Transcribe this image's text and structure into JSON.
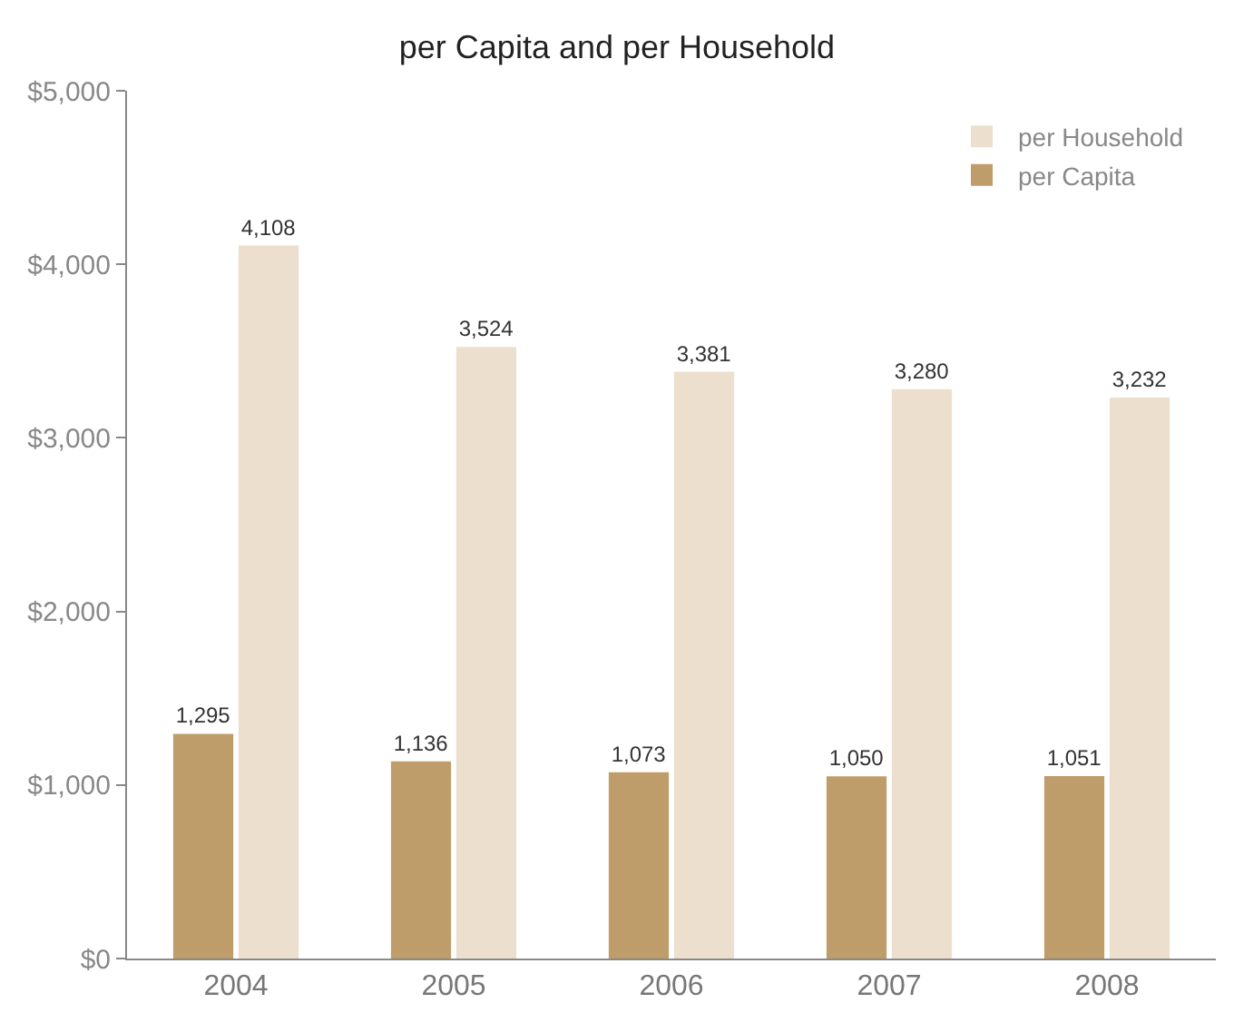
{
  "chart_data": {
    "type": "bar",
    "title": "per Capita and per Household",
    "categories": [
      "2004",
      "2005",
      "2006",
      "2007",
      "2008"
    ],
    "series": [
      {
        "name": "per Capita",
        "color": "#bf9d6a",
        "values": [
          1295,
          1136,
          1073,
          1050,
          1051
        ],
        "value_labels": [
          "1,295",
          "1,136",
          "1,073",
          "1,050",
          "1,051"
        ]
      },
      {
        "name": "per Household",
        "color": "#ecdfcd",
        "values": [
          4108,
          3524,
          3381,
          3280,
          3232
        ],
        "value_labels": [
          "4,108",
          "3,524",
          "3,381",
          "3,280",
          "3,232"
        ]
      }
    ],
    "ylim": [
      0,
      5000
    ],
    "yticks": [
      {
        "value": 0,
        "label": "$0"
      },
      {
        "value": 1000,
        "label": "$1,000"
      },
      {
        "value": 2000,
        "label": "$2,000"
      },
      {
        "value": 3000,
        "label": "$3,000"
      },
      {
        "value": 4000,
        "label": "$4,000"
      },
      {
        "value": 5000,
        "label": "$5,000"
      }
    ],
    "grid": false,
    "legend": "top right"
  }
}
